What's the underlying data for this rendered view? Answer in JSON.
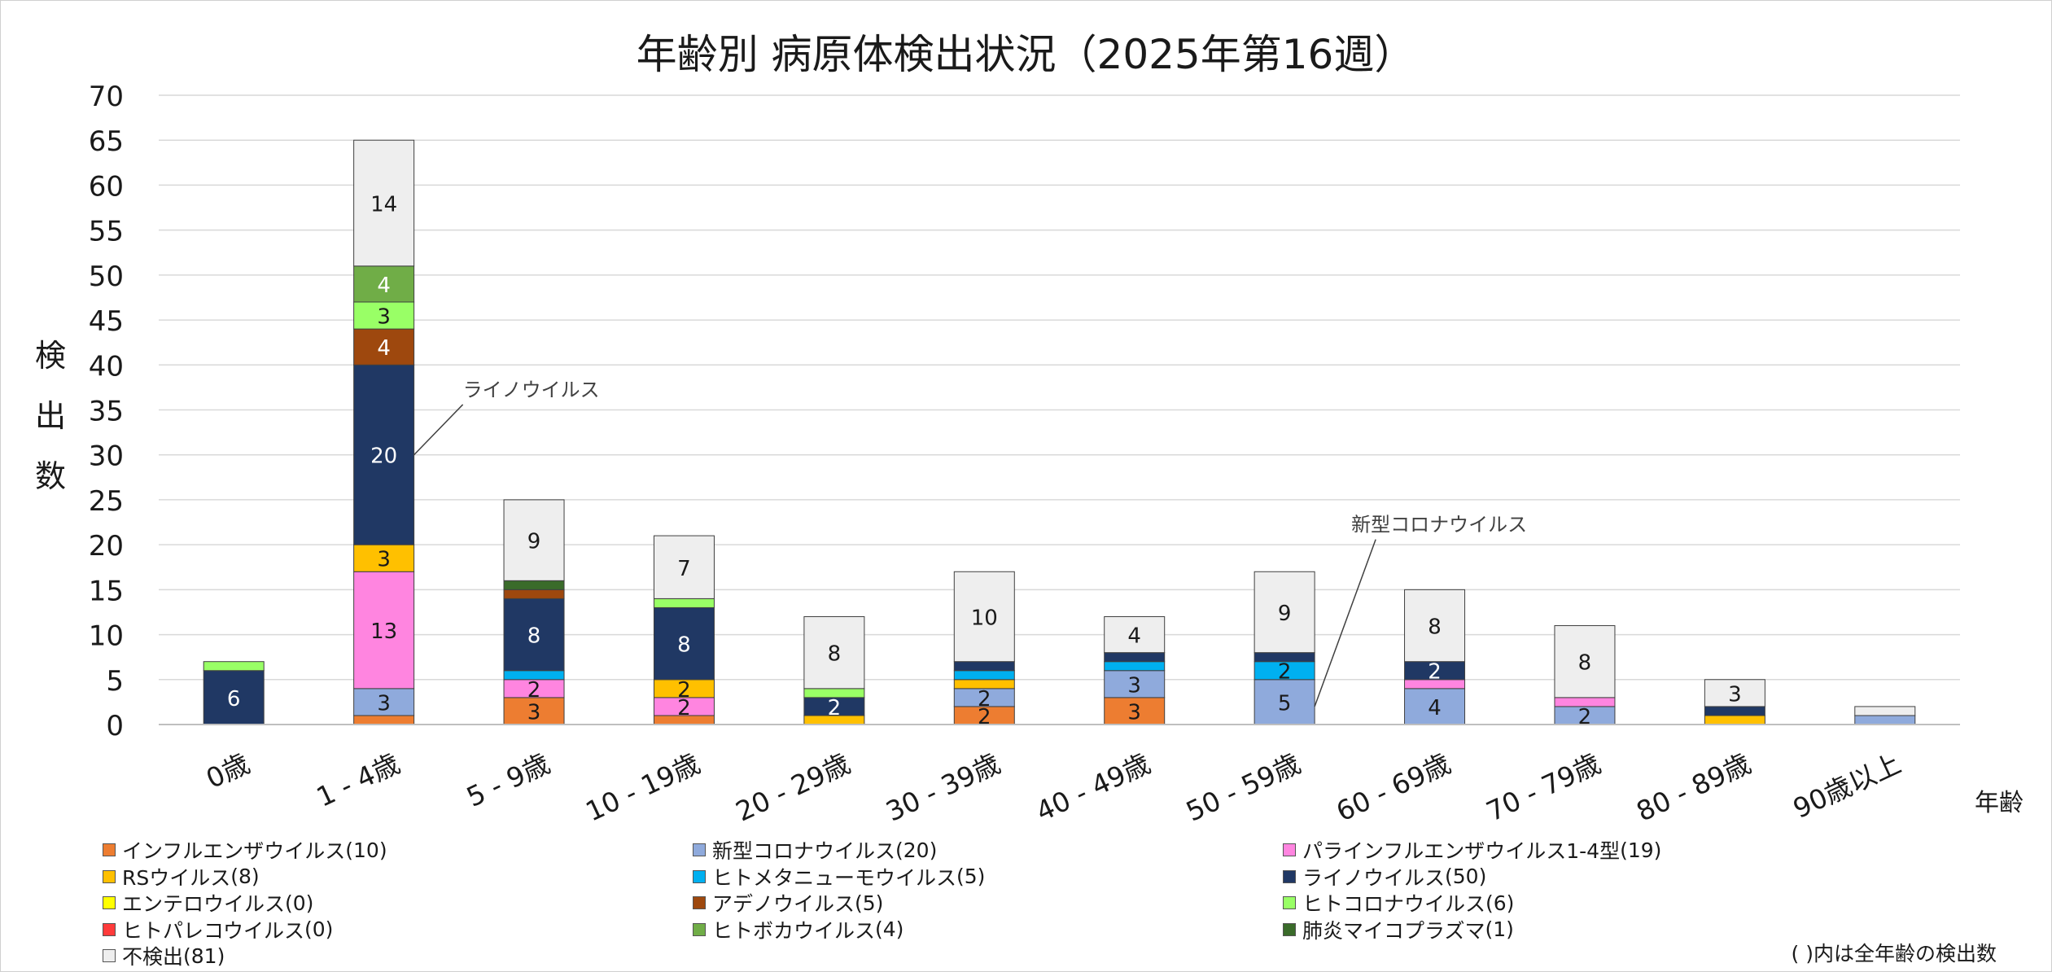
{
  "chart_data": {
    "type": "bar",
    "stacked": true,
    "title": "年齢別 病原体検出状況（2025年第16週）",
    "xlabel": "年齢",
    "ylabel": "検出数",
    "ylabel_chars": [
      "検",
      "出",
      "数"
    ],
    "ylim": [
      0,
      70
    ],
    "yticks": [
      0,
      5,
      10,
      15,
      20,
      25,
      30,
      35,
      40,
      45,
      50,
      55,
      60,
      65,
      70
    ],
    "grid": true,
    "categories": [
      "0歳",
      "1 - 4歳",
      "5 - 9歳",
      "10 - 19歳",
      "20 - 29歳",
      "30 - 39歳",
      "40 - 49歳",
      "50 - 59歳",
      "60 - 69歳",
      "70 - 79歳",
      "80 - 89歳",
      "90歳以上"
    ],
    "series": [
      {
        "name": "インフルエンザウイルス",
        "total": "(10)",
        "color": "#ED7D31",
        "values": [
          0,
          1,
          3,
          1,
          0,
          2,
          3,
          0,
          0,
          0,
          0,
          0
        ],
        "labels": [
          null,
          null,
          "3",
          null,
          null,
          "2",
          "3",
          null,
          null,
          null,
          null,
          null
        ]
      },
      {
        "name": "新型コロナウイルス",
        "total": "(20)",
        "color": "#8FAADC",
        "values": [
          0,
          3,
          0,
          0,
          0,
          2,
          3,
          5,
          4,
          2,
          0,
          1
        ],
        "labels": [
          null,
          "3",
          null,
          null,
          null,
          "2",
          "3",
          "5",
          "4",
          "2",
          null,
          null
        ]
      },
      {
        "name": "パラインフルエンザウイルス1-4型",
        "total": "(19)",
        "color": "#FF85E0",
        "values": [
          0,
          13,
          2,
          2,
          0,
          0,
          0,
          0,
          1,
          1,
          0,
          0
        ],
        "labels": [
          null,
          "13",
          "2",
          "2",
          null,
          null,
          null,
          null,
          null,
          null,
          null,
          null
        ]
      },
      {
        "name": "RSウイルス",
        "total": "(8)",
        "color": "#FFC000",
        "values": [
          0,
          3,
          0,
          2,
          1,
          1,
          0,
          0,
          0,
          0,
          1,
          0
        ],
        "labels": [
          null,
          "3",
          null,
          "2",
          null,
          null,
          null,
          null,
          null,
          null,
          null,
          null
        ]
      },
      {
        "name": "ヒトメタニューモウイルス",
        "total": "(5)",
        "color": "#00B0F0",
        "values": [
          0,
          0,
          1,
          0,
          0,
          1,
          1,
          2,
          0,
          0,
          0,
          0
        ],
        "labels": [
          null,
          null,
          null,
          null,
          null,
          null,
          null,
          "2",
          null,
          null,
          null,
          null
        ]
      },
      {
        "name": "ライノウイルス",
        "total": "(50)",
        "color": "#203864",
        "values": [
          6,
          20,
          8,
          8,
          2,
          1,
          1,
          1,
          2,
          0,
          1,
          0
        ],
        "labels": [
          "6",
          "20",
          "8",
          "8",
          "2",
          null,
          null,
          null,
          "2",
          null,
          null,
          null
        ]
      },
      {
        "name": "エンテロウイルス",
        "total": "(0)",
        "color": "#FFFF00",
        "values": [
          0,
          0,
          0,
          0,
          0,
          0,
          0,
          0,
          0,
          0,
          0,
          0
        ],
        "labels": [
          null,
          null,
          null,
          null,
          null,
          null,
          null,
          null,
          null,
          null,
          null,
          null
        ]
      },
      {
        "name": "アデノウイルス",
        "total": "(5)",
        "color": "#9E480E",
        "values": [
          0,
          4,
          1,
          0,
          0,
          0,
          0,
          0,
          0,
          0,
          0,
          0
        ],
        "labels": [
          null,
          "4",
          null,
          null,
          null,
          null,
          null,
          null,
          null,
          null,
          null,
          null
        ]
      },
      {
        "name": "ヒトコロナウイルス",
        "total": "(6)",
        "color": "#99FF66",
        "values": [
          1,
          3,
          0,
          1,
          1,
          0,
          0,
          0,
          0,
          0,
          0,
          0
        ],
        "labels": [
          null,
          "3",
          null,
          null,
          null,
          null,
          null,
          null,
          null,
          null,
          null,
          null
        ]
      },
      {
        "name": "ヒトパレコウイルス",
        "total": "(0)",
        "color": "#FF3B3B",
        "values": [
          0,
          0,
          0,
          0,
          0,
          0,
          0,
          0,
          0,
          0,
          0,
          0
        ],
        "labels": [
          null,
          null,
          null,
          null,
          null,
          null,
          null,
          null,
          null,
          null,
          null,
          null
        ]
      },
      {
        "name": "ヒトボカウイルス",
        "total": "(4)",
        "color": "#70AD47",
        "values": [
          0,
          4,
          0,
          0,
          0,
          0,
          0,
          0,
          0,
          0,
          0,
          0
        ],
        "labels": [
          null,
          "4",
          null,
          null,
          null,
          null,
          null,
          null,
          null,
          null,
          null,
          null
        ]
      },
      {
        "name": "肺炎マイコプラズマ",
        "total": "(1)",
        "color": "#3A6B2A",
        "values": [
          0,
          0,
          1,
          0,
          0,
          0,
          0,
          0,
          0,
          0,
          0,
          0
        ],
        "labels": [
          null,
          null,
          null,
          null,
          null,
          null,
          null,
          null,
          null,
          null,
          null,
          null
        ]
      },
      {
        "name": "不検出",
        "total": "(81)",
        "color": "#EEEEEE",
        "values": [
          0,
          14,
          9,
          7,
          8,
          10,
          4,
          9,
          8,
          8,
          3,
          1
        ],
        "labels": [
          null,
          "14",
          "9",
          "7",
          "8",
          "10",
          "4",
          "9",
          "8",
          "8",
          "3",
          null
        ]
      }
    ],
    "annotations": [
      {
        "text": "ライノウイルス",
        "category": "1 - 4歳",
        "series": "ライノウイルス",
        "value": 30,
        "label_value": 36.5
      },
      {
        "text": "新型コロナウイルス",
        "category": "50 - 59歳",
        "series": "新型コロナウイルス",
        "value": 2,
        "label_value": 21.5
      }
    ],
    "footnote": "( )内は全年齢の検出数"
  }
}
